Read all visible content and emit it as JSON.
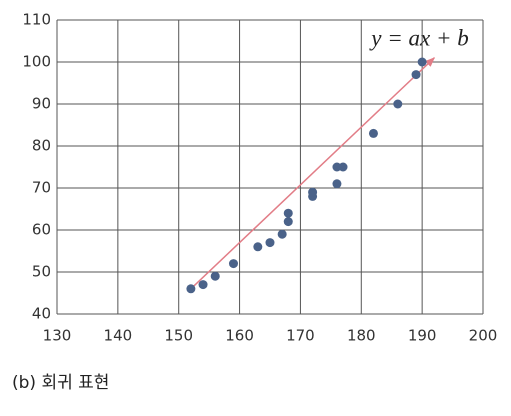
{
  "chart_data": {
    "type": "scatter",
    "x": [
      152,
      154,
      156,
      159,
      163,
      165,
      167,
      168,
      168,
      172,
      172,
      176,
      176,
      177,
      182,
      186,
      189,
      190
    ],
    "values": [
      46,
      47,
      49,
      52,
      56,
      57,
      59,
      62,
      64,
      68,
      69,
      71,
      75,
      75,
      83,
      90,
      97,
      100
    ],
    "color": "#4a6289",
    "xlim": [
      130,
      200
    ],
    "xticks": [
      130,
      140,
      150,
      160,
      170,
      180,
      190,
      200
    ],
    "ylim": [
      40,
      110
    ],
    "yticks": [
      40,
      50,
      60,
      70,
      80,
      90,
      100,
      110
    ],
    "grid": true,
    "regression_line": {
      "x": [
        152,
        192
      ],
      "y": [
        46,
        101
      ],
      "color": "#e27d87"
    },
    "annotation": "y = ax + b",
    "caption": "(b) 회귀 표현"
  }
}
